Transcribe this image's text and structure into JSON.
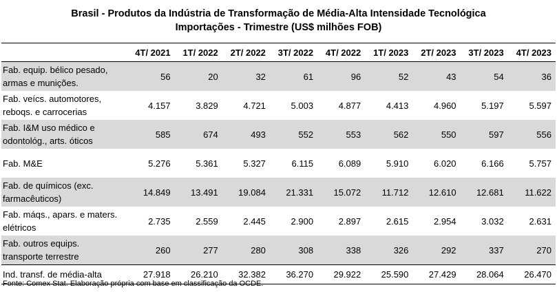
{
  "title_line1": "Brasil - Produtos da Indústria de Transformação de Média-Alta Intensidade Tecnológica",
  "title_line2": "Importações - Trimestre (US$ milhões FOB)",
  "columns": [
    "4T/ 2021",
    "1T/ 2022",
    "2T/ 2022",
    "3T/ 2022",
    "4T/ 2022",
    "1T/ 2023",
    "2T/ 2023",
    "3T/ 2023",
    "4T/ 2023"
  ],
  "rows": [
    {
      "label_line1": "Fab. equip. bélico pesado,",
      "label_line2": "armas e munições.",
      "values": [
        "56",
        "20",
        "32",
        "61",
        "96",
        "52",
        "43",
        "54",
        "36"
      ]
    },
    {
      "label_line1": "Fab. veícs. automotores,",
      "label_line2": "reboqs. e carrocerias",
      "values": [
        "4.157",
        "3.829",
        "4.721",
        "5.003",
        "4.877",
        "4.413",
        "4.960",
        "5.197",
        "5.597"
      ]
    },
    {
      "label_line1": "Fab. I&M uso médico e",
      "label_line2": "odontológ., arts. óticos",
      "values": [
        "585",
        "674",
        "493",
        "552",
        "553",
        "562",
        "550",
        "597",
        "556"
      ]
    },
    {
      "label_line1": "Fab. M&E",
      "label_line2": "",
      "values": [
        "5.276",
        "5.361",
        "5.327",
        "6.115",
        "6.089",
        "5.910",
        "6.020",
        "6.166",
        "5.757"
      ]
    },
    {
      "label_line1": "Fab. de químicos (exc.",
      "label_line2": "farmacêuticos)",
      "values": [
        "14.849",
        "13.491",
        "19.084",
        "21.331",
        "15.072",
        "11.712",
        "12.610",
        "12.681",
        "11.622"
      ]
    },
    {
      "label_line1": "Fab. máqs., apars. e maters.",
      "label_line2": "elétricos",
      "values": [
        "2.735",
        "2.559",
        "2.445",
        "2.900",
        "2.897",
        "2.615",
        "2.954",
        "3.032",
        "2.631"
      ]
    },
    {
      "label_line1": "Fab. outros equips.",
      "label_line2": "transporte terrestre",
      "values": [
        "260",
        "277",
        "280",
        "308",
        "338",
        "326",
        "292",
        "337",
        "270"
      ]
    }
  ],
  "total": {
    "label": "Ind. transf. de média-alta",
    "values": [
      "27.918",
      "26.210",
      "32.382",
      "36.270",
      "29.922",
      "25.590",
      "27.429",
      "28.064",
      "26.470"
    ]
  },
  "source": "Fonte: Comex Stat. Elaboração própria com base em classificação da OCDE."
}
